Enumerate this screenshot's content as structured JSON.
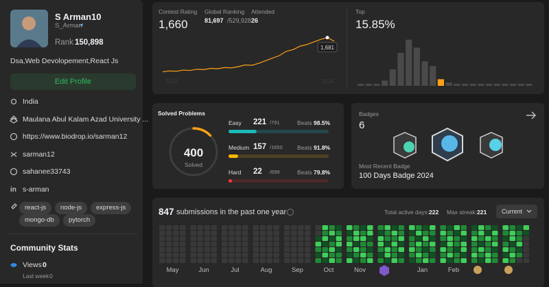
{
  "profile": {
    "name": "S Arman10",
    "username": "S_Arman",
    "rank_label": "Rank",
    "rank": "150,898",
    "bio": "Dsa,Web Devolopement,React Js",
    "edit_button": "Edit Profile",
    "details": [
      "India",
      "Maulana Abul Kalam Azad University ...",
      "https://www.biodrop.io/sarman12",
      "sarman12",
      "sahanee33743",
      "s-arman"
    ],
    "tags": [
      "react-js",
      "node-js",
      "express-js",
      "mongo-db",
      "pytorch"
    ],
    "community": {
      "title": "Community Stats",
      "views_label": "Views",
      "views": 0,
      "last_week_label": "Last week",
      "last_week": 0
    }
  },
  "contest": {
    "rating_label": "Contest Rating",
    "rating": "1,660",
    "ranking_label": "Global Ranking",
    "ranking": "81,697",
    "ranking_total": "/529,928",
    "attended_label": "Attended",
    "attended": 26,
    "tooltip": "1,681",
    "chart_data": {
      "type": "line",
      "x_labels": [
        "2023",
        "2024"
      ],
      "color": "#ffa116",
      "ylim": [
        1450,
        1700
      ],
      "values": [
        1480,
        1485,
        1483,
        1490,
        1488,
        1495,
        1493,
        1500,
        1498,
        1505,
        1503,
        1510,
        1520,
        1518,
        1530,
        1545,
        1560,
        1575,
        1600,
        1610,
        1630,
        1640,
        1655,
        1670,
        1681,
        1660
      ]
    }
  },
  "top": {
    "label": "Top",
    "value": "15.85%",
    "chart_data": {
      "type": "bar",
      "color": "#4a4a4a",
      "highlight_color": "#ffa116",
      "highlight": 10,
      "ylim": [
        0,
        75
      ],
      "values": [
        3,
        3,
        3,
        8,
        25,
        50,
        70,
        58,
        37,
        30,
        10,
        5,
        3,
        3,
        3,
        3,
        3,
        3,
        3,
        3,
        3,
        3
      ]
    }
  },
  "solved": {
    "title": "Solved Problems",
    "total": 400,
    "total_label": "Solved",
    "beats_label": "Beats",
    "levels": [
      {
        "name": "Easy",
        "solved": 221,
        "total": {
          "value": 791,
          "label": "/791"
        },
        "beats": "98.5%",
        "color": "#1cbaba",
        "track": "#24484a"
      },
      {
        "name": "Medium",
        "solved": 157,
        "total": {
          "value": 1650,
          "label": "/1650"
        },
        "beats": "91.8%",
        "color": "#ffb700",
        "track": "#4d4022"
      },
      {
        "name": "Hard",
        "solved": 22,
        "total": {
          "value": 699,
          "label": "/699"
        },
        "beats": "79.8%",
        "color": "#f63737",
        "track": "#4b2828"
      }
    ]
  },
  "badges": {
    "title": "Badges",
    "count": 6,
    "recent_label": "Most Recent Badge",
    "recent": "100 Days Badge 2024"
  },
  "submissions": {
    "count": 847,
    "text": "submissions in the past one year",
    "active_label": "Total active days:",
    "active": 222,
    "streak_label": "Max streak:",
    "streak": 221,
    "dropdown": "Current",
    "heatmap": {
      "months": [
        "May",
        "Jun",
        "Jul",
        "Aug",
        "Sep",
        "Oct",
        "Nov",
        null,
        "Jan",
        "Feb",
        null,
        null
      ],
      "weeks": [
        [
          0,
          0,
          0,
          0,
          0,
          0,
          0
        ],
        [
          0,
          0,
          0,
          0,
          0,
          0,
          0
        ],
        [
          0,
          0,
          0,
          0,
          0,
          0,
          0
        ],
        [
          0,
          0,
          0,
          0,
          0,
          0,
          0
        ],
        [
          0,
          0,
          0,
          0,
          0,
          0,
          0
        ],
        [
          0,
          0,
          0,
          0,
          0,
          0,
          0
        ],
        [
          0,
          0,
          0,
          0,
          0,
          0,
          0
        ],
        [
          0,
          0,
          0,
          0,
          0,
          0,
          0
        ],
        [
          0,
          0,
          0,
          0,
          0,
          0,
          0
        ],
        [
          0,
          0,
          0,
          0,
          0,
          0,
          0
        ],
        [
          0,
          0,
          0,
          0,
          0,
          0,
          0
        ],
        [
          0,
          0,
          0,
          0,
          0,
          0,
          0
        ],
        [
          0,
          0,
          0,
          0,
          0,
          0,
          0
        ],
        [
          0,
          0,
          0,
          0,
          0,
          0,
          0
        ],
        [
          0,
          0,
          0,
          0,
          0,
          0,
          0
        ],
        [
          0,
          0,
          0,
          0,
          0,
          0,
          0
        ],
        [
          0,
          0,
          0,
          0,
          0,
          0,
          0
        ],
        [
          0,
          0,
          0,
          0,
          0,
          0,
          0
        ],
        [
          0,
          0,
          0,
          0,
          0,
          0,
          0
        ],
        [
          0,
          0,
          0,
          0,
          0,
          0,
          0
        ],
        [
          0,
          0,
          1,
          3,
          2,
          1,
          2
        ],
        [
          3,
          2,
          3,
          1,
          2,
          3,
          1
        ],
        [
          2,
          3,
          1,
          2,
          3,
          2,
          3
        ],
        [
          1,
          2,
          3,
          3,
          1,
          2,
          2
        ],
        [
          3,
          1,
          2,
          3,
          2,
          1,
          3
        ],
        [
          2,
          3,
          3,
          1,
          3,
          2,
          1
        ],
        [
          1,
          2,
          3,
          2,
          2,
          3,
          2
        ],
        [
          3,
          3,
          1,
          2,
          1,
          2,
          3
        ],
        [
          2,
          1,
          3,
          3,
          2,
          1,
          2
        ],
        [
          3,
          2,
          2,
          1,
          3,
          3,
          1
        ],
        [
          1,
          3,
          2,
          3,
          2,
          2,
          3
        ],
        [
          2,
          2,
          3,
          1,
          3,
          1,
          2
        ],
        [
          3,
          1,
          2,
          2,
          3,
          2,
          1
        ],
        [
          2,
          3,
          1,
          3,
          2,
          3,
          2
        ],
        [
          1,
          2,
          3,
          2,
          1,
          2,
          3
        ],
        [
          3,
          2,
          1,
          3,
          2,
          1,
          2
        ],
        [
          2,
          3,
          2,
          1,
          3,
          2,
          3
        ],
        [
          1,
          2,
          3,
          3,
          2,
          3,
          1
        ],
        [
          3,
          1,
          2,
          2,
          1,
          2,
          2
        ],
        [
          2,
          3,
          1,
          3,
          3,
          1,
          3
        ],
        [
          1,
          2,
          3,
          2,
          2,
          3,
          2
        ],
        [
          3,
          3,
          2,
          1,
          3,
          2,
          1
        ],
        [
          2,
          1,
          3,
          2,
          2,
          3,
          3
        ],
        [
          1,
          3,
          2,
          3,
          1,
          2,
          2
        ],
        [
          3,
          2,
          1,
          2,
          3,
          1,
          3
        ],
        [
          2,
          3,
          3,
          1,
          2,
          3,
          2
        ],
        [
          1,
          2,
          2,
          3,
          1,
          2,
          0
        ],
        [
          3,
          1,
          0,
          0,
          0,
          0,
          0
        ]
      ]
    }
  }
}
